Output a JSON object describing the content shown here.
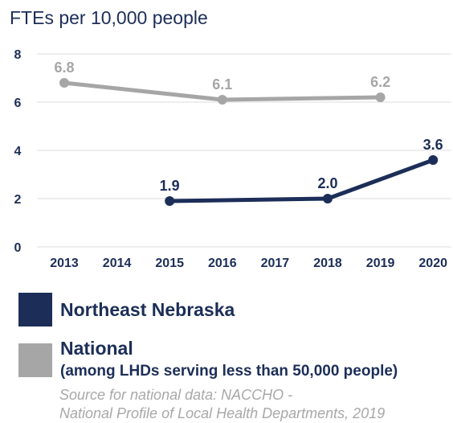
{
  "chart_data": {
    "type": "line",
    "ylabel": "FTEs per 10,000 people",
    "x": [
      "2013",
      "2014",
      "2015",
      "2016",
      "2017",
      "2018",
      "2019",
      "2020"
    ],
    "ylim": [
      0,
      8
    ],
    "yticks": [
      "0",
      "2",
      "4",
      "6",
      "8"
    ],
    "grid": true,
    "legend": "bottom",
    "series": [
      {
        "name": "Northeast Nebraska",
        "color": "#1c2e58",
        "points": [
          {
            "x": "2015",
            "y": 1.9,
            "label": "1.9"
          },
          {
            "x": "2018",
            "y": 2.0,
            "label": "2.0"
          },
          {
            "x": "2020",
            "y": 3.6,
            "label": "3.6"
          }
        ]
      },
      {
        "name": "National",
        "subtitle": "(among LHDs serving less than 50,000 people)",
        "color": "#a6a6a6",
        "points": [
          {
            "x": "2013",
            "y": 6.8,
            "label": "6.8"
          },
          {
            "x": "2016",
            "y": 6.1,
            "label": "6.1"
          },
          {
            "x": "2019",
            "y": 6.2,
            "label": "6.2"
          }
        ]
      }
    ]
  },
  "source": {
    "line1": "Source for national data: NACCHO -",
    "line2": "National Profile of Local Health Departments, 2019"
  }
}
